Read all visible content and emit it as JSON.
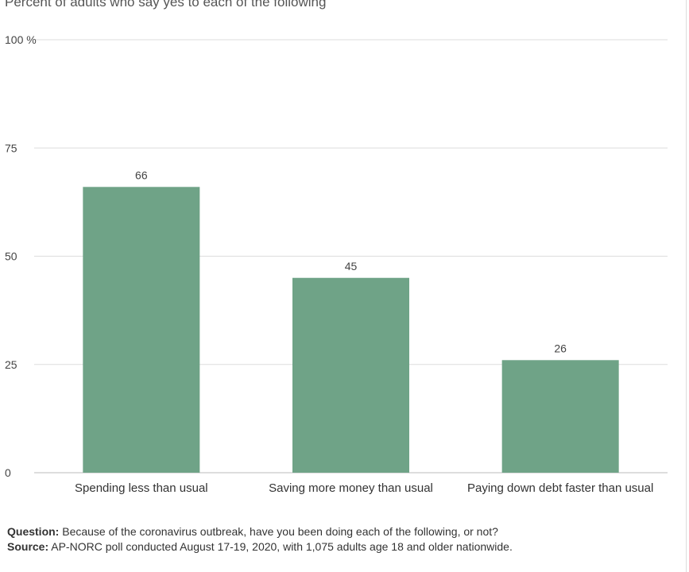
{
  "chart_data": {
    "type": "bar",
    "title": "",
    "subtitle": "Percent of adults who say yes to each of the following",
    "categories": [
      "Spending less than usual",
      "Saving more money than usual",
      "Paying down debt faster than usual"
    ],
    "values": [
      66,
      45,
      26
    ],
    "value_labels": [
      "66",
      "45",
      "26"
    ],
    "xlabel": "",
    "ylabel": "",
    "ylim": [
      0,
      100
    ],
    "yticks": [
      0,
      25,
      50,
      75,
      100
    ],
    "ytick_labels": [
      "0",
      "25",
      "50",
      "75",
      "100"
    ],
    "y_unit": "%",
    "grid": true,
    "legend": "none",
    "bar_color": "#6fa387",
    "grid_color": "#dddddd"
  },
  "notes": {
    "question_label": "Question:",
    "question_text": " Because of the coronavirus outbreak, have you been doing each of the following, or not?",
    "source_label": "Source:",
    "source_text": " AP-NORC poll conducted August 17-19, 2020, with 1,075 adults age 18 and older nationwide."
  }
}
